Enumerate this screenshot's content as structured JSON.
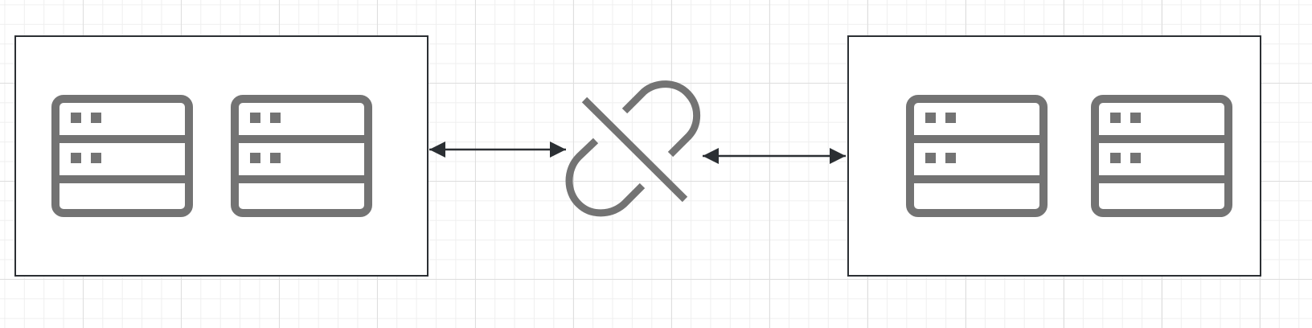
{
  "diagram": {
    "colors": {
      "group_border": "#2b2f33",
      "icon": "#737373",
      "connector": "#2b2f33",
      "grid_major": "#dedede",
      "grid_minor": "#efefef"
    },
    "left_group": {
      "servers": [
        {
          "icon": "server-rack-icon"
        },
        {
          "icon": "server-rack-icon"
        }
      ]
    },
    "right_group": {
      "servers": [
        {
          "icon": "server-rack-icon"
        },
        {
          "icon": "server-rack-icon"
        }
      ]
    },
    "link": {
      "icon": "broken-link-icon",
      "state": "disconnected"
    },
    "connectors": [
      {
        "from": "left_group",
        "to": "link",
        "arrows": "both"
      },
      {
        "from": "link",
        "to": "right_group",
        "arrows": "both"
      }
    ]
  }
}
